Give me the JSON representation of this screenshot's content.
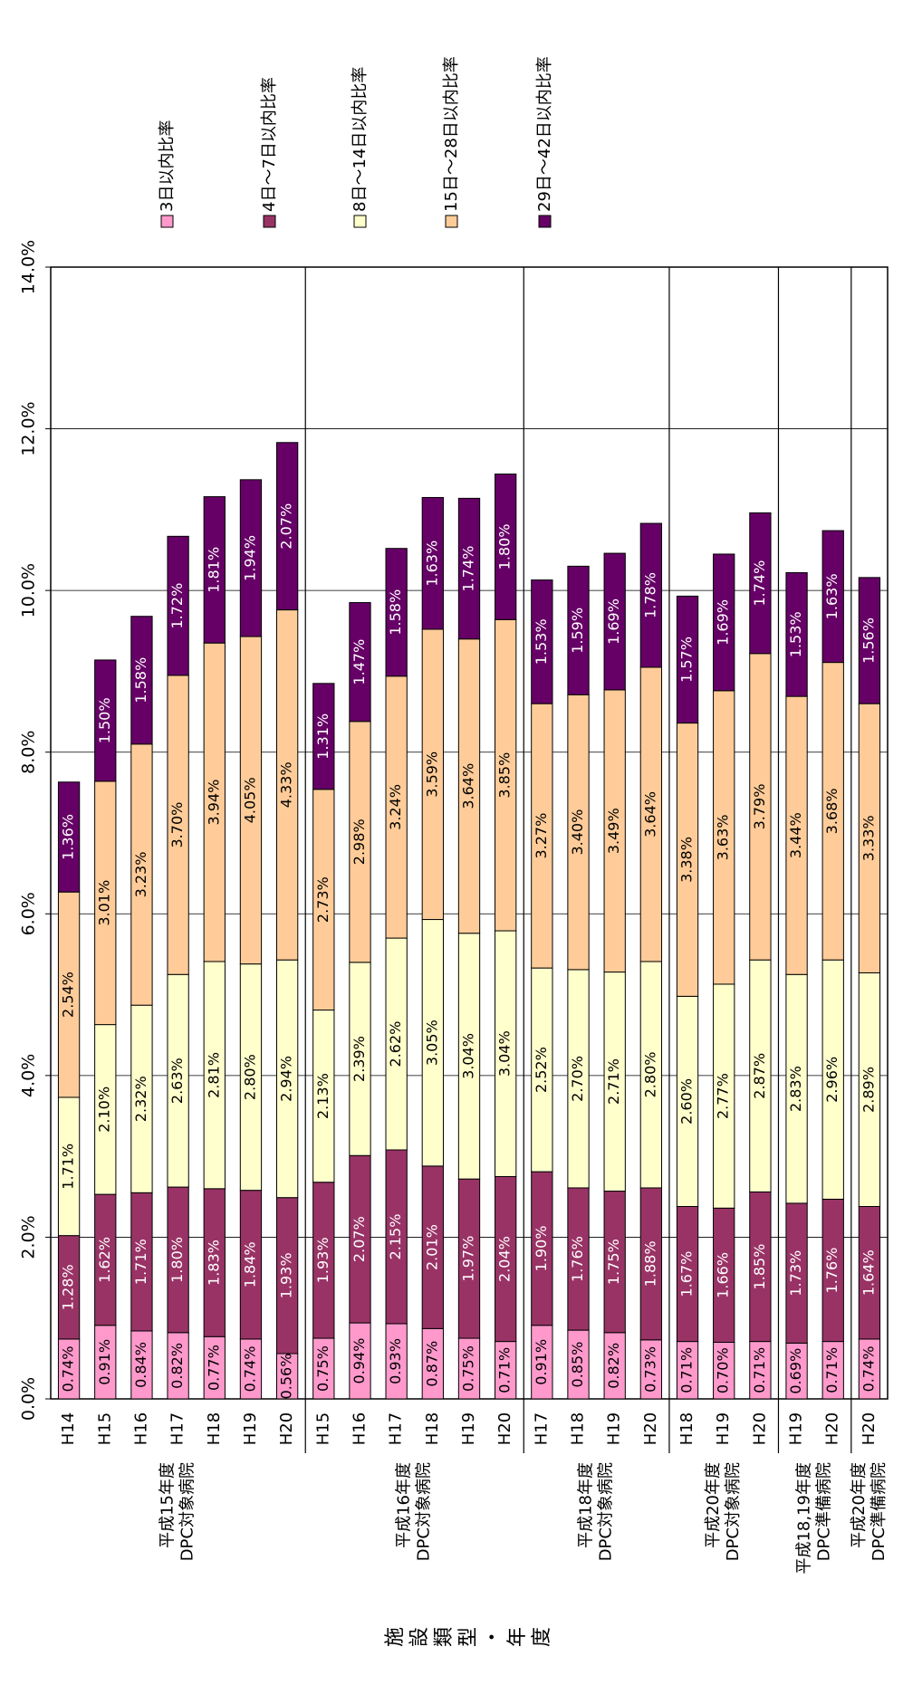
{
  "chart_data": {
    "type": "bar",
    "stacked": true,
    "orientation": "horizontal-bars-rotated-page",
    "value_axis": {
      "ticks": [
        "0.0%",
        "2.0%",
        "4.0%",
        "6.0%",
        "8.0%",
        "10.0%",
        "12.0%",
        "14.0%"
      ],
      "ylim": [
        0,
        14
      ],
      "unit": "%",
      "grid": true
    },
    "series": [
      {
        "name": "3日以内比率",
        "color": "#ff99cc"
      },
      {
        "name": "4日～7日以内比率",
        "color": "#993366"
      },
      {
        "name": "8日～14日以内比率",
        "color": "#ffffcc"
      },
      {
        "name": "15日～28日以内比率",
        "color": "#ffcc99"
      },
      {
        "name": "29日～42日以内比率",
        "color": "#660066"
      }
    ],
    "groups": [
      {
        "label_line1": "平成15年度",
        "label_line2": "DPC対象病院",
        "bars": [
          {
            "category": "H14",
            "values": [
              0.74,
              1.28,
              1.71,
              2.54,
              1.36
            ],
            "labels": [
              "0.74%",
              "1.28%",
              "1.71%",
              "2.54%",
              "1.36%"
            ]
          },
          {
            "category": "H15",
            "values": [
              0.91,
              1.62,
              2.1,
              3.01,
              1.5
            ],
            "labels": [
              "0.91%",
              "1.62%",
              "2.10%",
              "3.01%",
              "1.50%"
            ]
          },
          {
            "category": "H16",
            "values": [
              0.84,
              1.71,
              2.32,
              3.23,
              1.58
            ],
            "labels": [
              "0.84%",
              "1.71%",
              "2.32%",
              "3.23%",
              "1.58%"
            ]
          },
          {
            "category": "H17",
            "values": [
              0.82,
              1.8,
              2.63,
              3.7,
              1.72
            ],
            "labels": [
              "0.82%",
              "1.80%",
              "2.63%",
              "3.70%",
              "1.72%"
            ]
          },
          {
            "category": "H18",
            "values": [
              0.77,
              1.83,
              2.81,
              3.94,
              1.81
            ],
            "labels": [
              "0.77%",
              "1.83%",
              "2.81%",
              "3.94%",
              "1.81%"
            ]
          },
          {
            "category": "H19",
            "values": [
              0.74,
              1.84,
              2.8,
              4.05,
              1.94
            ],
            "labels": [
              "0.74%",
              "1.84%",
              "2.80%",
              "4.05%",
              "1.94%"
            ]
          },
          {
            "category": "H20",
            "values": [
              0.56,
              1.93,
              2.94,
              4.33,
              2.07
            ],
            "labels": [
              "0.56%",
              "1.93%",
              "2.94%",
              "4.33%",
              "2.07%"
            ]
          }
        ]
      },
      {
        "label_line1": "平成16年度",
        "label_line2": "DPC対象病院",
        "bars": [
          {
            "category": "H15",
            "values": [
              0.75,
              1.93,
              2.13,
              2.73,
              1.31
            ],
            "labels": [
              "0.75%",
              "1.93%",
              "2.13%",
              "2.73%",
              "1.31%"
            ]
          },
          {
            "category": "H16",
            "values": [
              0.94,
              2.07,
              2.39,
              2.98,
              1.47
            ],
            "labels": [
              "0.94%",
              "2.07%",
              "2.39%",
              "2.98%",
              "1.47%"
            ]
          },
          {
            "category": "H17",
            "values": [
              0.93,
              2.15,
              2.62,
              3.24,
              1.58
            ],
            "labels": [
              "0.93%",
              "2.15%",
              "2.62%",
              "3.24%",
              "1.58%"
            ]
          },
          {
            "category": "H18",
            "values": [
              0.87,
              2.01,
              3.05,
              3.59,
              1.63
            ],
            "labels": [
              "0.87%",
              "2.01%",
              "3.05%",
              "3.59%",
              "1.63%"
            ]
          },
          {
            "category": "H19",
            "values": [
              0.75,
              1.97,
              3.04,
              3.64,
              1.74
            ],
            "labels": [
              "0.75%",
              "1.97%",
              "3.04%",
              "3.64%",
              "1.74%"
            ]
          },
          {
            "category": "H20",
            "values": [
              0.71,
              2.04,
              3.04,
              3.85,
              1.8
            ],
            "labels": [
              "0.71%",
              "2.04%",
              "3.04%",
              "3.85%",
              "1.80%"
            ]
          }
        ]
      },
      {
        "label_line1": "平成18年度",
        "label_line2": "DPC対象病院",
        "bars": [
          {
            "category": "H17",
            "values": [
              0.91,
              1.9,
              2.52,
              3.27,
              1.53
            ],
            "labels": [
              "0.91%",
              "1.90%",
              "2.52%",
              "3.27%",
              "1.53%"
            ]
          },
          {
            "category": "H18",
            "values": [
              0.85,
              1.76,
              2.7,
              3.4,
              1.59
            ],
            "labels": [
              "0.85%",
              "1.76%",
              "2.70%",
              "3.40%",
              "1.59%"
            ]
          },
          {
            "category": "H19",
            "values": [
              0.82,
              1.75,
              2.71,
              3.49,
              1.69
            ],
            "labels": [
              "0.82%",
              "1.75%",
              "2.71%",
              "3.49%",
              "1.69%"
            ]
          },
          {
            "category": "H20",
            "values": [
              0.73,
              1.88,
              2.8,
              3.64,
              1.78
            ],
            "labels": [
              "0.73%",
              "1.88%",
              "2.80%",
              "3.64%",
              "1.78%"
            ]
          }
        ]
      },
      {
        "label_line1": "平成20年度",
        "label_line2": "DPC対象病院",
        "bars": [
          {
            "category": "H18",
            "values": [
              0.71,
              1.67,
              2.6,
              3.38,
              1.57
            ],
            "labels": [
              "0.71%",
              "1.67%",
              "2.60%",
              "3.38%",
              "1.57%"
            ]
          },
          {
            "category": "H19",
            "values": [
              0.7,
              1.66,
              2.77,
              3.63,
              1.69
            ],
            "labels": [
              "0.70%",
              "1.66%",
              "2.77%",
              "3.63%",
              "1.69%"
            ]
          },
          {
            "category": "H20",
            "values": [
              0.71,
              1.85,
              2.87,
              3.79,
              1.74
            ],
            "labels": [
              "0.71%",
              "1.85%",
              "2.87%",
              "3.79%",
              "1.74%"
            ]
          }
        ]
      },
      {
        "label_line1": "平成18,19年度",
        "label_line2": "DPC準備病院",
        "bars": [
          {
            "category": "H19",
            "values": [
              0.69,
              1.73,
              2.83,
              3.44,
              1.53
            ],
            "labels": [
              "0.69%",
              "1.73%",
              "2.83%",
              "3.44%",
              "1.53%"
            ]
          },
          {
            "category": "H20",
            "values": [
              0.71,
              1.76,
              2.96,
              3.68,
              1.63
            ],
            "labels": [
              "0.71%",
              "1.76%",
              "2.96%",
              "3.68%",
              "1.63%"
            ]
          }
        ]
      },
      {
        "label_line1": "平成20年度",
        "label_line2": "DPC準備病院",
        "bars": [
          {
            "category": "H20",
            "values": [
              0.74,
              1.64,
              2.89,
              3.33,
              1.56
            ],
            "labels": [
              "0.74%",
              "1.64%",
              "2.89%",
              "3.33%",
              "1.56%"
            ]
          }
        ]
      }
    ],
    "category_axis_title": "施設類型・年度",
    "legend_position": "top-right"
  }
}
